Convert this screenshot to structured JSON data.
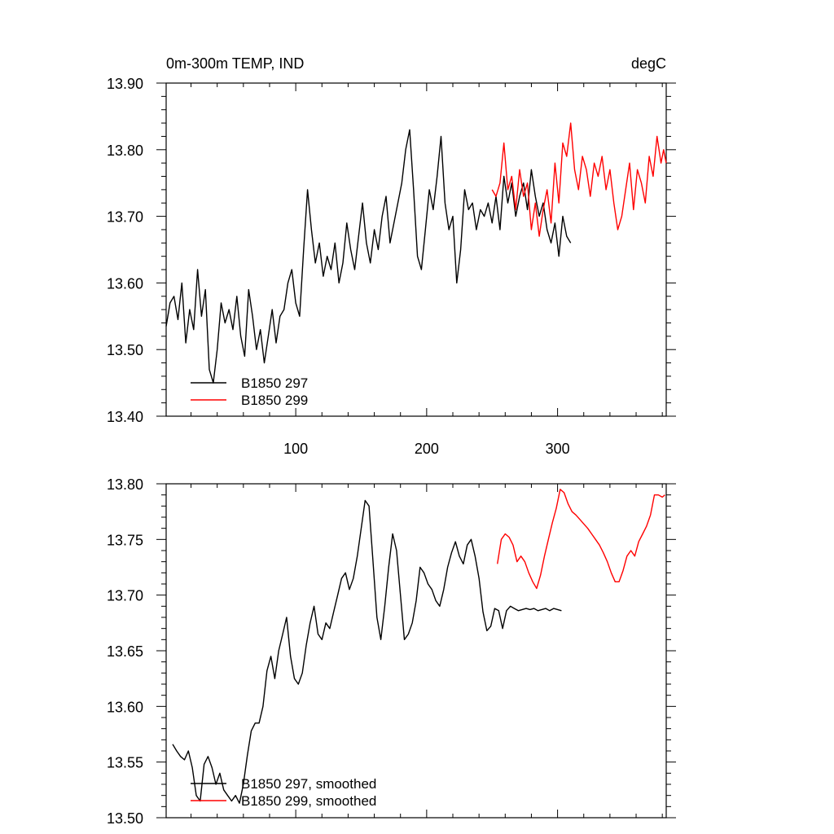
{
  "chart_data": [
    {
      "type": "line",
      "title": "0m-300m TEMP, IND",
      "units": "degC",
      "xlabel": "",
      "ylabel": "",
      "xlim": [
        1,
        383
      ],
      "ylim": [
        13.4,
        13.9
      ],
      "xticks": [
        100,
        200,
        300
      ],
      "xtick_labels": [
        "100",
        "200",
        "300"
      ],
      "yticks": [
        13.4,
        13.5,
        13.6,
        13.7,
        13.8,
        13.9
      ],
      "ytick_labels": [
        "13.40",
        "13.50",
        "13.60",
        "13.70",
        "13.80",
        "13.90"
      ],
      "legend_position": "bottom-left",
      "series": [
        {
          "name": "B1850 297",
          "color": "#000000",
          "x": [
            1,
            4,
            7,
            10,
            13,
            16,
            19,
            22,
            25,
            28,
            31,
            34,
            37,
            40,
            43,
            46,
            49,
            52,
            55,
            58,
            61,
            64,
            67,
            70,
            73,
            76,
            79,
            82,
            85,
            88,
            91,
            94,
            97,
            100,
            103,
            106,
            109,
            112,
            115,
            118,
            121,
            124,
            127,
            130,
            133,
            136,
            139,
            142,
            145,
            148,
            151,
            154,
            157,
            160,
            163,
            166,
            169,
            172,
            175,
            178,
            181,
            184,
            187,
            190,
            193,
            196,
            199,
            202,
            205,
            208,
            211,
            214,
            217,
            220,
            223,
            226,
            229,
            232,
            235,
            238,
            241,
            244,
            247,
            250,
            253,
            256,
            259,
            262,
            265,
            268,
            271,
            274,
            277,
            280,
            283,
            286,
            289,
            292,
            295,
            298,
            301,
            304,
            307,
            310
          ],
          "values": [
            13.535,
            13.57,
            13.58,
            13.545,
            13.6,
            13.51,
            13.56,
            13.53,
            13.62,
            13.55,
            13.59,
            13.47,
            13.45,
            13.5,
            13.57,
            13.54,
            13.56,
            13.53,
            13.58,
            13.52,
            13.49,
            13.59,
            13.55,
            13.5,
            13.53,
            13.48,
            13.52,
            13.56,
            13.51,
            13.55,
            13.56,
            13.6,
            13.62,
            13.57,
            13.55,
            13.65,
            13.74,
            13.68,
            13.63,
            13.66,
            13.61,
            13.64,
            13.62,
            13.66,
            13.6,
            13.63,
            13.69,
            13.65,
            13.62,
            13.67,
            13.72,
            13.66,
            13.63,
            13.68,
            13.65,
            13.7,
            13.73,
            13.66,
            13.69,
            13.72,
            13.75,
            13.8,
            13.83,
            13.74,
            13.64,
            13.62,
            13.68,
            13.74,
            13.71,
            13.76,
            13.82,
            13.72,
            13.68,
            13.7,
            13.6,
            13.65,
            13.74,
            13.71,
            13.72,
            13.68,
            13.71,
            13.7,
            13.72,
            13.69,
            13.73,
            13.68,
            13.76,
            13.72,
            13.75,
            13.7,
            13.73,
            13.75,
            13.71,
            13.77,
            13.73,
            13.7,
            13.72,
            13.68,
            13.66,
            13.69,
            13.64,
            13.7,
            13.67,
            13.66
          ]
        },
        {
          "name": "B1850 299",
          "color": "#ff0000",
          "x": [
            250,
            253,
            256,
            259,
            262,
            265,
            268,
            271,
            274,
            277,
            280,
            283,
            286,
            289,
            292,
            295,
            298,
            301,
            304,
            307,
            310,
            313,
            316,
            319,
            322,
            325,
            328,
            331,
            334,
            337,
            340,
            343,
            346,
            349,
            352,
            355,
            358,
            361,
            364,
            367,
            370,
            373,
            376,
            379,
            381,
            383
          ],
          "values": [
            13.74,
            13.73,
            13.75,
            13.81,
            13.74,
            13.76,
            13.71,
            13.77,
            13.73,
            13.75,
            13.68,
            13.72,
            13.67,
            13.71,
            13.74,
            13.69,
            13.78,
            13.72,
            13.81,
            13.79,
            13.84,
            13.77,
            13.74,
            13.79,
            13.77,
            13.73,
            13.78,
            13.76,
            13.79,
            13.74,
            13.77,
            13.72,
            13.68,
            13.7,
            13.74,
            13.78,
            13.71,
            13.77,
            13.75,
            13.72,
            13.79,
            13.76,
            13.82,
            13.78,
            13.8,
            13.78
          ]
        }
      ]
    },
    {
      "type": "line",
      "title": "",
      "xlabel": "",
      "ylabel": "",
      "xlim": [
        1,
        383
      ],
      "ylim": [
        13.5,
        13.8
      ],
      "xticks": [
        100,
        200,
        300
      ],
      "xtick_labels": [],
      "yticks": [
        13.5,
        13.55,
        13.6,
        13.65,
        13.7,
        13.75,
        13.8
      ],
      "ytick_labels": [
        "13.50",
        "13.55",
        "13.60",
        "13.65",
        "13.70",
        "13.75",
        "13.80"
      ],
      "legend_position": "bottom-left",
      "series": [
        {
          "name": "B1850 297, smoothed",
          "color": "#000000",
          "x": [
            6,
            9,
            12,
            15,
            18,
            21,
            24,
            27,
            30,
            33,
            36,
            39,
            42,
            45,
            48,
            51,
            54,
            57,
            60,
            63,
            66,
            69,
            72,
            75,
            78,
            81,
            84,
            87,
            90,
            93,
            96,
            99,
            102,
            105,
            108,
            111,
            114,
            117,
            120,
            123,
            126,
            129,
            132,
            135,
            138,
            141,
            144,
            147,
            150,
            153,
            156,
            159,
            162,
            165,
            168,
            171,
            174,
            177,
            180,
            183,
            186,
            189,
            192,
            195,
            198,
            201,
            204,
            207,
            210,
            213,
            216,
            219,
            222,
            225,
            228,
            231,
            234,
            237,
            240,
            243,
            246,
            249,
            252,
            255,
            258,
            261,
            264,
            267,
            270,
            273,
            276,
            279,
            282,
            285,
            288,
            291,
            294,
            297,
            300,
            303
          ],
          "values": [
            13.566,
            13.56,
            13.555,
            13.552,
            13.56,
            13.545,
            13.52,
            13.515,
            13.548,
            13.555,
            13.545,
            13.53,
            13.54,
            13.525,
            13.52,
            13.515,
            13.52,
            13.513,
            13.53,
            13.556,
            13.578,
            13.585,
            13.585,
            13.6,
            13.632,
            13.645,
            13.625,
            13.65,
            13.665,
            13.68,
            13.645,
            13.625,
            13.62,
            13.63,
            13.655,
            13.675,
            13.69,
            13.665,
            13.66,
            13.675,
            13.67,
            13.685,
            13.7,
            13.715,
            13.72,
            13.705,
            13.715,
            13.735,
            13.76,
            13.785,
            13.78,
            13.73,
            13.68,
            13.66,
            13.69,
            13.725,
            13.755,
            13.74,
            13.7,
            13.66,
            13.665,
            13.675,
            13.695,
            13.725,
            13.72,
            13.71,
            13.705,
            13.695,
            13.69,
            13.705,
            13.725,
            13.738,
            13.748,
            13.735,
            13.728,
            13.745,
            13.75,
            13.735,
            13.715,
            13.685,
            13.668,
            13.672,
            13.688,
            13.686,
            13.67,
            13.686,
            13.69,
            13.688,
            13.686,
            13.687,
            13.688,
            13.687,
            13.688,
            13.686,
            13.687,
            13.688,
            13.686,
            13.688,
            13.687,
            13.686
          ]
        },
        {
          "name": "B1850 299, smoothed",
          "color": "#ff0000",
          "x": [
            254,
            257,
            260,
            263,
            266,
            269,
            272,
            275,
            278,
            281,
            284,
            287,
            290,
            293,
            296,
            299,
            302,
            305,
            308,
            311,
            314,
            317,
            320,
            323,
            326,
            329,
            332,
            335,
            338,
            341,
            344,
            347,
            350,
            353,
            356,
            359,
            362,
            365,
            368,
            371,
            374,
            377,
            380,
            382
          ],
          "values": [
            13.728,
            13.75,
            13.755,
            13.752,
            13.745,
            13.73,
            13.735,
            13.73,
            13.72,
            13.712,
            13.706,
            13.718,
            13.735,
            13.75,
            13.765,
            13.778,
            13.795,
            13.792,
            13.782,
            13.775,
            13.772,
            13.768,
            13.764,
            13.76,
            13.755,
            13.75,
            13.745,
            13.738,
            13.73,
            13.72,
            13.712,
            13.712,
            13.722,
            13.735,
            13.74,
            13.735,
            13.748,
            13.755,
            13.762,
            13.772,
            13.79,
            13.79,
            13.788,
            13.79
          ]
        }
      ]
    }
  ]
}
